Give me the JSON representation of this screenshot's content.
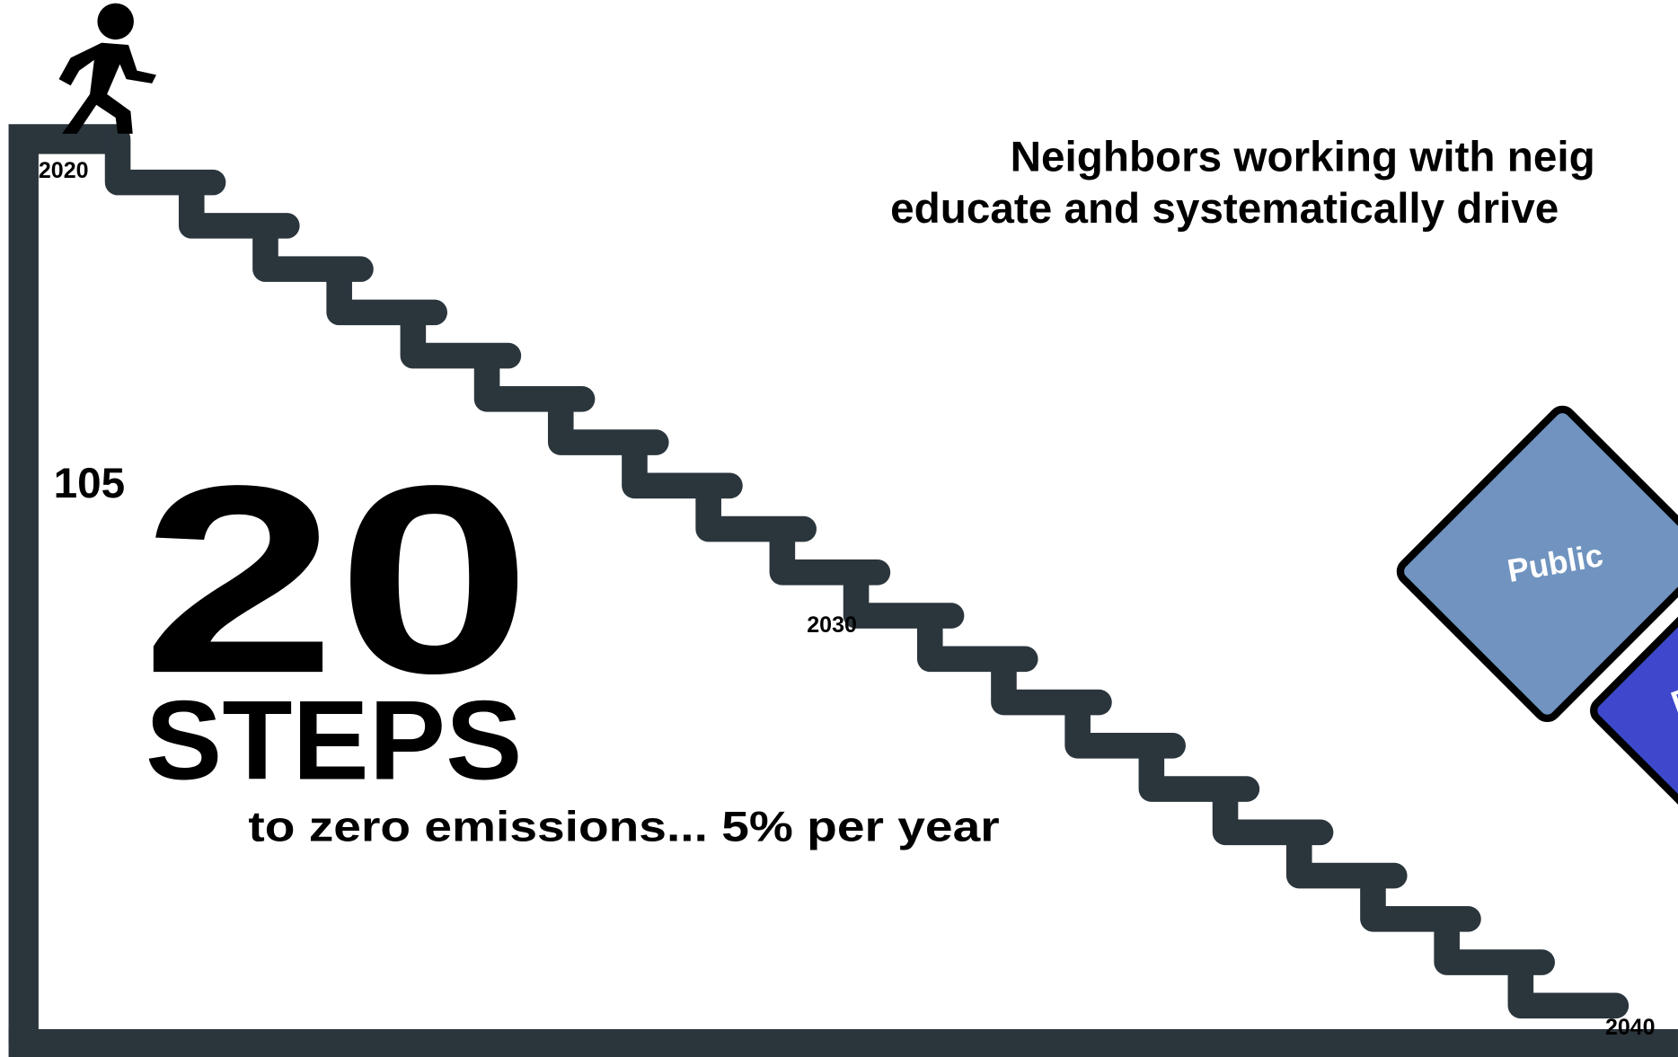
{
  "year_labels": {
    "start": "2020",
    "middle": "2030",
    "end": "2040"
  },
  "counter": "105",
  "logo": {
    "number": "20",
    "word": "STEPS"
  },
  "tagline": "to zero emissions... 5% per year",
  "headline": [
    "Neighbors working with neig",
    "educate and systematically drive"
  ],
  "puzzle": [
    "Public",
    "Pa"
  ]
}
